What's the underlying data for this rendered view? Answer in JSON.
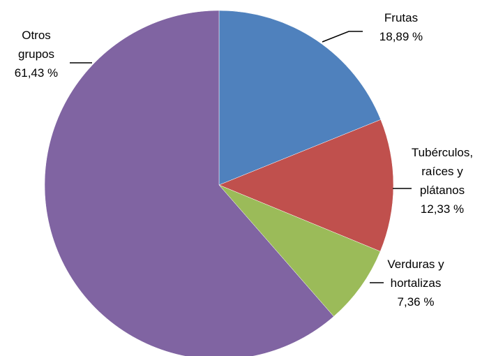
{
  "chart_data": {
    "type": "pie",
    "categories": [
      "Frutas",
      "Tubérculos, raíces y plátanos",
      "Verduras y hortalizas",
      "Otros grupos"
    ],
    "values": [
      18.89,
      12.33,
      7.36,
      61.43
    ],
    "value_labels": [
      "18,89 %",
      "12,33 %",
      "7,36 %",
      "61,43 %"
    ],
    "colors": [
      "#4f81bd",
      "#c0504d",
      "#9bbb59",
      "#8064a2"
    ]
  }
}
